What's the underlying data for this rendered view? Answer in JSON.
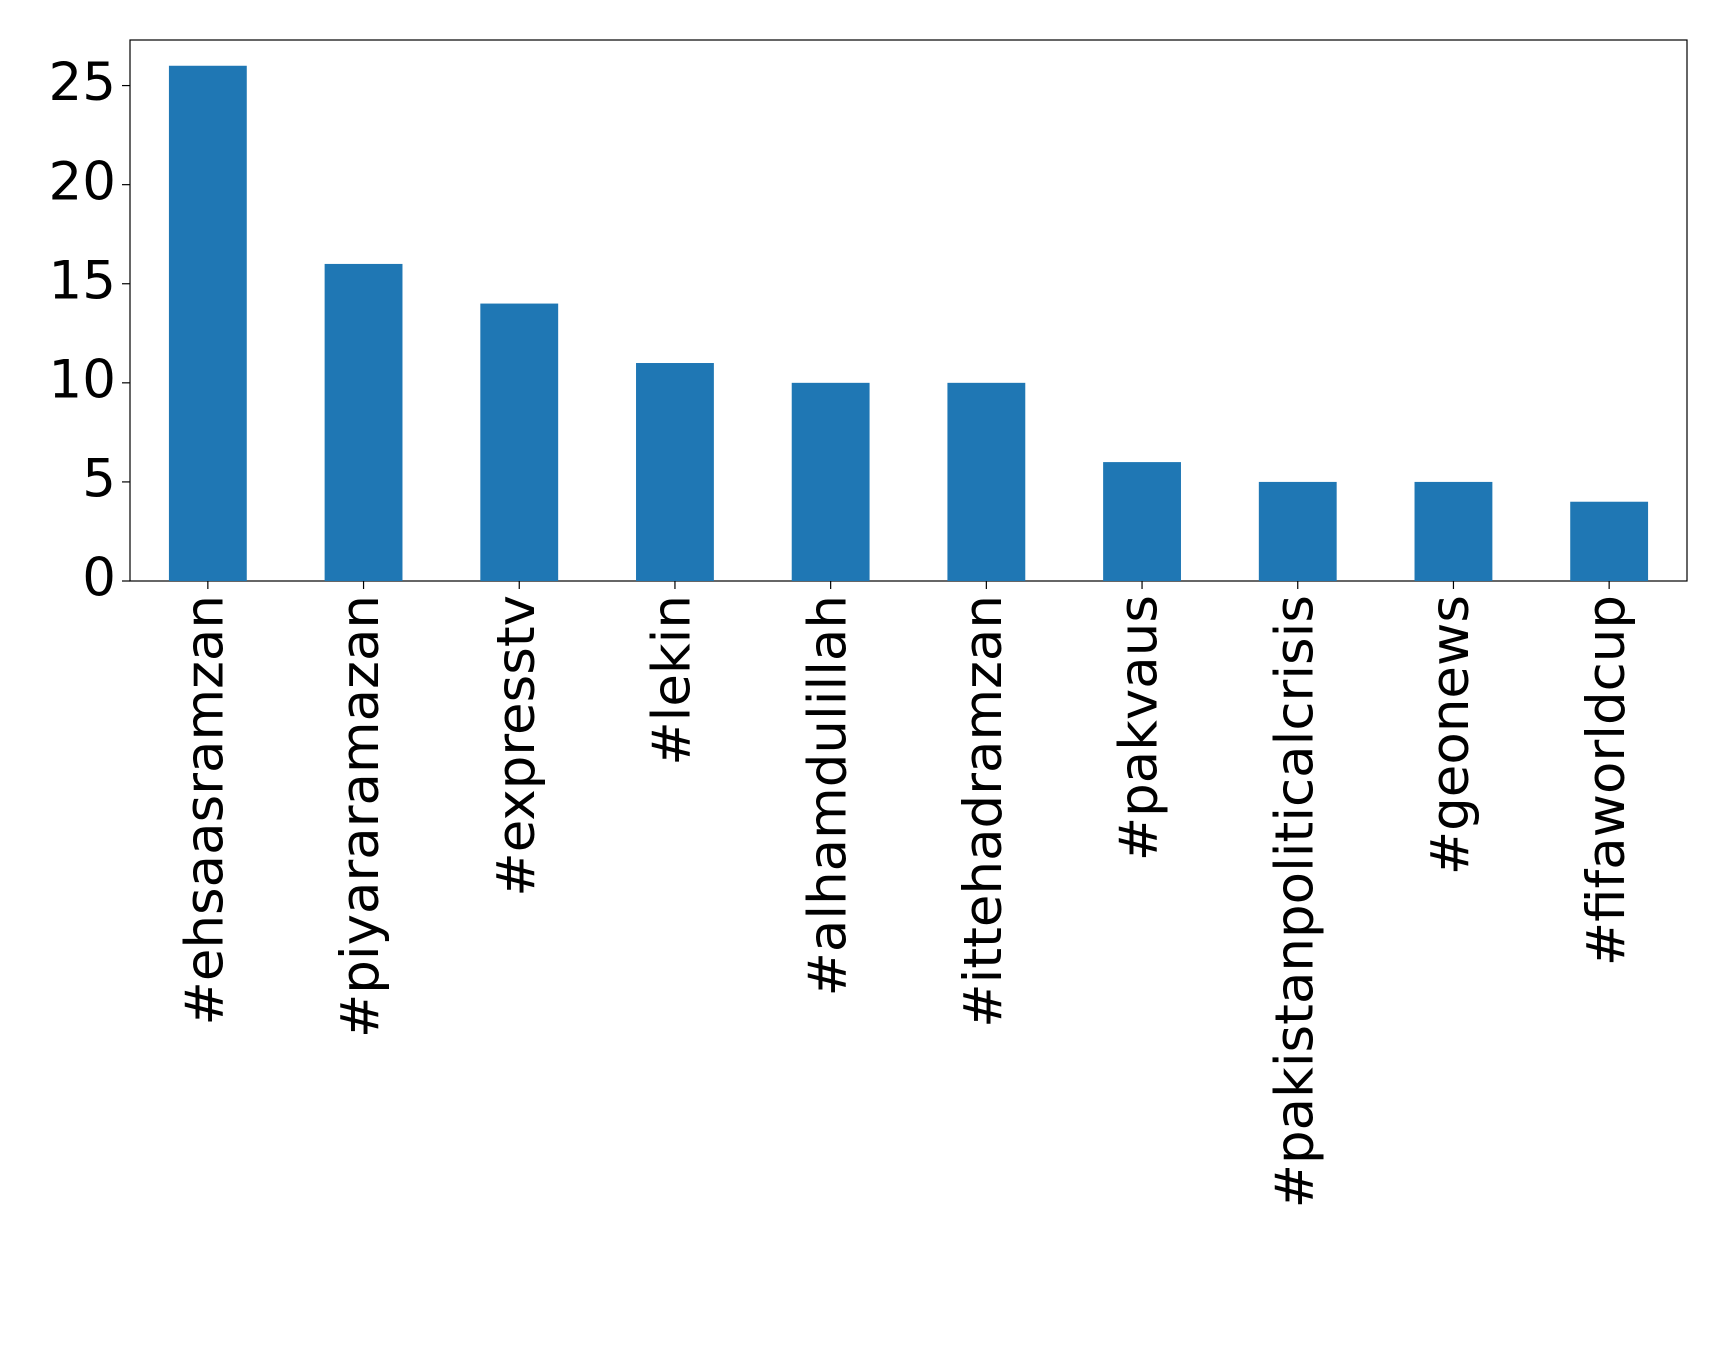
{
  "chart_data": {
    "type": "bar",
    "categories": [
      "#ehsaasramzan",
      "#piyararamazan",
      "#expresstv",
      "#lekin",
      "#alhamdulillah",
      "#ittehadramzan",
      "#pakvaus",
      "#pakistanpoliticalcrisis",
      "#geonews",
      "#fifaworldcup"
    ],
    "values": [
      26,
      16,
      14,
      11,
      10,
      10,
      6,
      5,
      5,
      4
    ],
    "color": "#1f77b4",
    "ylim": [
      0,
      27.3
    ],
    "yticks": [
      0,
      5,
      10,
      15,
      20,
      25
    ],
    "grid": false
  }
}
